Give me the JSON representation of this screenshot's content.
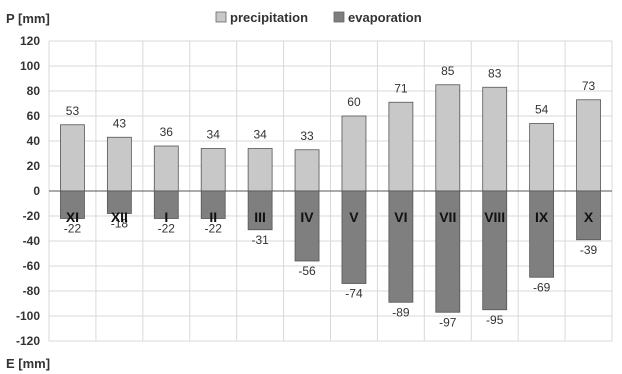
{
  "chart_data": {
    "type": "bar",
    "ylabel_top": "P [mm]",
    "ylabel_bottom": "E [mm]",
    "ylim": [
      -120,
      120
    ],
    "yticks": [
      -120,
      -100,
      -80,
      -60,
      -40,
      -20,
      0,
      20,
      40,
      60,
      80,
      100,
      120
    ],
    "grid": true,
    "legend_position": "top",
    "categories": [
      "XI",
      "XII",
      "I",
      "II",
      "III",
      "IV",
      "V",
      "VI",
      "VII",
      "VIII",
      "IX",
      "X"
    ],
    "series": [
      {
        "name": "precipitation",
        "color": "#c8c8c8",
        "values": [
          53,
          43,
          36,
          34,
          34,
          33,
          60,
          71,
          85,
          83,
          54,
          73
        ]
      },
      {
        "name": "evaporation",
        "color": "#7f7f7f",
        "values": [
          -22,
          -18,
          -22,
          -22,
          -31,
          -56,
          -74,
          -89,
          -97,
          -95,
          -69,
          -39
        ]
      }
    ]
  }
}
